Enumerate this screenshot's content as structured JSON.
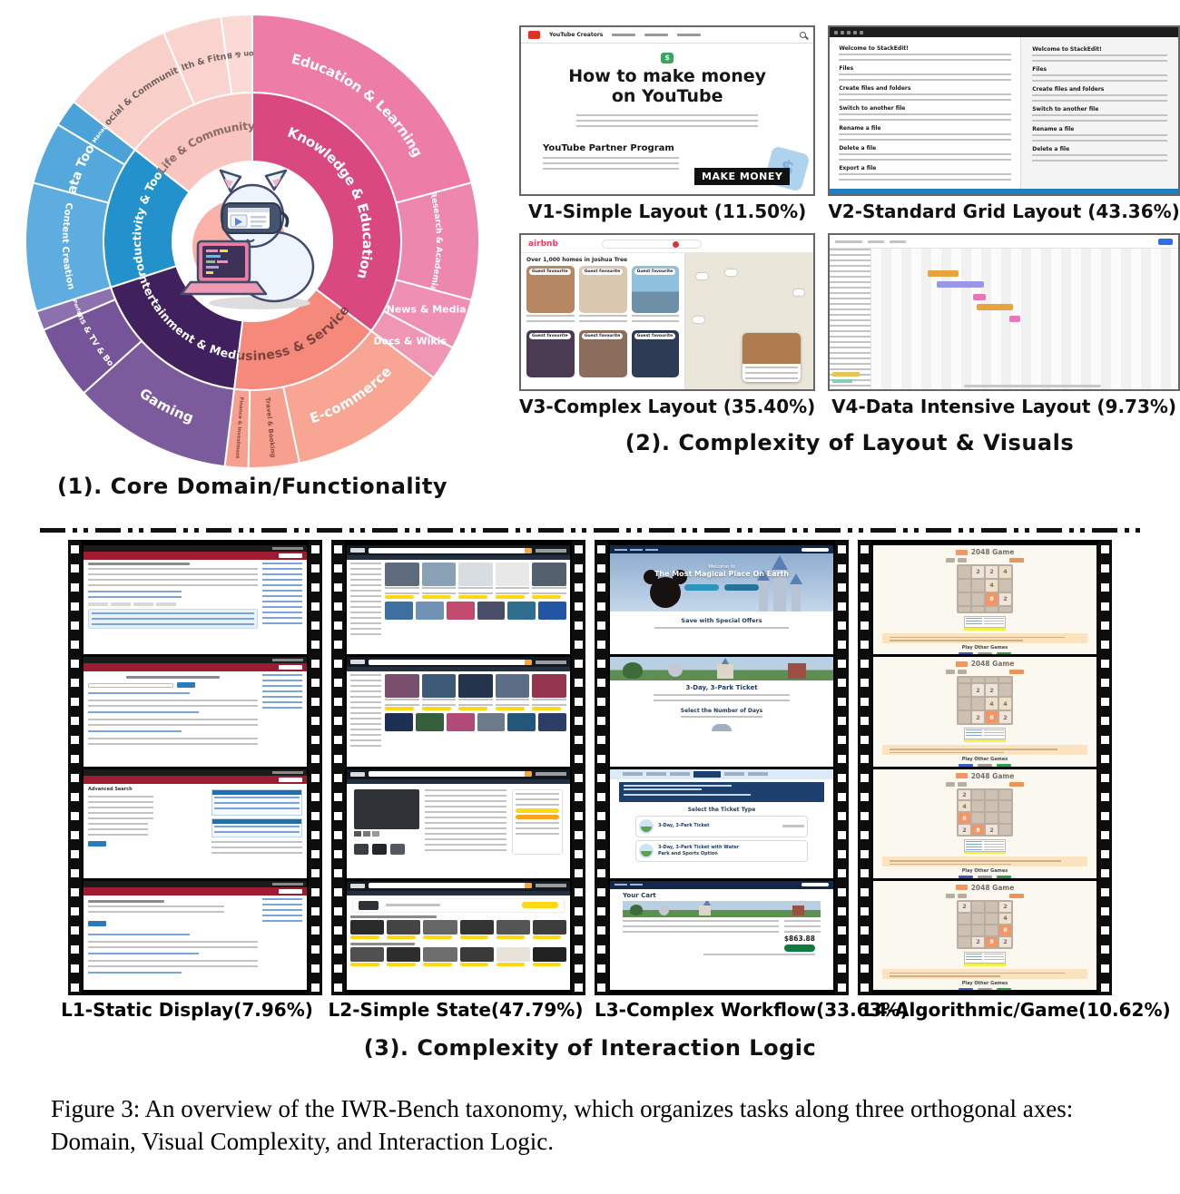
{
  "panel1": {
    "caption": "(1). Core Domain/Functionality"
  },
  "panel2": {
    "caption": "(2). Complexity of Layout & Visuals",
    "labels": {
      "v1": "V1-Simple Layout (11.50%)",
      "v2": "V2-Standard Grid Layout (43.36%)",
      "v3": "V3-Complex Layout (35.40%)",
      "v4": "V4-Data Intensive Layout (9.73%)"
    },
    "v1": {
      "brand": "YouTube Creators",
      "money_icon": "$",
      "title_line1": "How to make money",
      "title_line2": "on YouTube",
      "subheading": "YouTube Partner Program",
      "badge": "MAKE MONEY",
      "star_glyph": "$"
    },
    "v2": {
      "headings_left": [
        "Welcome to StackEdit!",
        "Files",
        "Create files and folders",
        "Switch to another file",
        "Rename a file",
        "Delete a file",
        "Export a file"
      ],
      "headings_right": [
        "Welcome to StackEdit!",
        "Files",
        "Create files and folders",
        "Switch to another file",
        "Rename a file",
        "Delete a file"
      ]
    },
    "v3": {
      "brand": "airbnb",
      "heading": "Over 1,000 homes in Joshua Tree",
      "card_badge": "Guest favourite"
    }
  },
  "panel3": {
    "caption": "(3). Complexity of Interaction Logic",
    "labels": {
      "l1": "L1-Static Display(7.96%)",
      "l2": "L2-Simple State(47.79%)",
      "l3": "L3-Complex Workflow(33.63%)",
      "l4": "L4-Algorithmic/Game(10.62%)"
    },
    "l1": {
      "f3_title": "Advanced Search"
    },
    "l3": {
      "hero_small": "Welcome to",
      "hero_title": "The Most Magical Place On Earth",
      "offers": "Save with Special Offers",
      "ticket_title": "3-Day, 3-Park Ticket",
      "select_days": "Select the Number of Days",
      "select_type": "Select the Ticket Type",
      "ticket_option1": "3-Day, 3-Park Ticket",
      "ticket_option2": "3-Day, 3-Park Ticket with Water Park and Sports Option",
      "cart_title": "Your Cart",
      "total": "$863.88"
    },
    "l4": {
      "title": "2048 Game",
      "footer_link": "Play Other Games",
      "boards": [
        [
          [
            null,
            2,
            2,
            4
          ],
          [
            null,
            null,
            4,
            null
          ],
          [
            null,
            null,
            8,
            2
          ],
          [
            null,
            null,
            null,
            null
          ]
        ],
        [
          [
            null,
            null,
            null,
            null
          ],
          [
            null,
            2,
            2,
            null
          ],
          [
            null,
            null,
            4,
            4
          ],
          [
            null,
            2,
            8,
            2
          ]
        ],
        [
          [
            2,
            null,
            null,
            null
          ],
          [
            4,
            null,
            null,
            null
          ],
          [
            8,
            null,
            null,
            null
          ],
          [
            2,
            8,
            2,
            null
          ]
        ],
        [
          [
            2,
            null,
            null,
            2
          ],
          [
            null,
            null,
            null,
            4
          ],
          [
            null,
            null,
            null,
            8
          ],
          [
            null,
            2,
            8,
            2
          ]
        ]
      ]
    }
  },
  "figure": {
    "caption": "Figure 3: An overview of the IWR-Bench taxonomy, which organizes tasks along three orthogonal axes: Domain, Visual Complexity, and Interaction Logic."
  },
  "chart_data": {
    "type": "sunburst",
    "title": "Core Domain/Functionality",
    "units": "degrees of 360 (angular share of each category)",
    "rings": {
      "inner_radius": [
        88,
        164
      ],
      "outer_radius": [
        164,
        250
      ]
    },
    "segments": [
      {
        "label": "Knowledge & Education",
        "ring": 1,
        "parent": null,
        "a0": 0,
        "a1": 127,
        "color": "#d9487e",
        "text": "#ffffff",
        "fs": 15,
        "mode": "arc"
      },
      {
        "label": "Business & Services",
        "ring": 1,
        "parent": null,
        "a0": 127,
        "a1": 187,
        "color": "#f5897b",
        "text": "#7c423c",
        "fs": 14,
        "mode": "arc"
      },
      {
        "label": "Entertainment & Media",
        "ring": 1,
        "parent": null,
        "a0": 187,
        "a1": 252,
        "color": "#40215e",
        "text": "#ffffff",
        "fs": 12.5,
        "mode": "arc"
      },
      {
        "label": "Productivity & Tools",
        "ring": 1,
        "parent": null,
        "a0": 252,
        "a1": 308,
        "color": "#2391cb",
        "text": "#ffffff",
        "fs": 12.5,
        "mode": "arc"
      },
      {
        "label": "Life & Community",
        "ring": 1,
        "parent": null,
        "a0": 308,
        "a1": 360,
        "color": "#f8c5c0",
        "text": "#8a6a64",
        "fs": 12,
        "mode": "arc"
      },
      {
        "label": "Education & Learning",
        "ring": 2,
        "parent": "Knowledge & Education",
        "a0": 0,
        "a1": 75,
        "color": "#ed7ca6",
        "text": "#ffffff",
        "fs": 15,
        "mode": "arc"
      },
      {
        "label": "Research & Academia",
        "ring": 2,
        "parent": "Knowledge & Education",
        "a0": 75,
        "a1": 105,
        "color": "#ee87ad",
        "text": "#ffffff",
        "fs": 9,
        "mode": "arc"
      },
      {
        "label": "News & Media",
        "ring": 2,
        "parent": "Knowledge & Education",
        "a0": 105,
        "a1": 118,
        "color": "#ef90b2",
        "text": "#ffffff",
        "fs": 11,
        "mode": "horizontal"
      },
      {
        "label": "Docs & Wikis",
        "ring": 2,
        "parent": "Knowledge & Education",
        "a0": 118,
        "a1": 127,
        "color": "#f096b5",
        "text": "#ffffff",
        "fs": 11,
        "mode": "horizontal"
      },
      {
        "label": "E-commerce",
        "ring": 2,
        "parent": "Business & Services",
        "a0": 127,
        "a1": 168,
        "color": "#f9a593",
        "text": "#ffffff",
        "fs": 15,
        "mode": "arc"
      },
      {
        "label": "Travel & Booking",
        "ring": 2,
        "parent": "Business & Services",
        "a0": 168,
        "a1": 181,
        "color": "#f8a08f",
        "text": "#8a4a40",
        "fs": 7,
        "mode": "radial"
      },
      {
        "label": "Finance & Investment",
        "ring": 2,
        "parent": "Business & Services",
        "a0": 181,
        "a1": 187,
        "color": "#f8a08f",
        "text": "#8a4a40",
        "fs": 5.5,
        "mode": "radial"
      },
      {
        "label": "Gaming",
        "ring": 2,
        "parent": "Entertainment & Media",
        "a0": 187,
        "a1": 228,
        "color": "#7c5b9d",
        "text": "#ffffff",
        "fs": 15,
        "mode": "arc"
      },
      {
        "label": "Films & TV & Books",
        "ring": 2,
        "parent": "Entertainment & Media",
        "a0": 228,
        "a1": 247,
        "color": "#75549a",
        "text": "#ffffff",
        "fs": 9,
        "mode": "arc"
      },
      {
        "label": "Music & Performances",
        "ring": 2,
        "parent": "Entertainment & Media",
        "a0": 247,
        "a1": 252,
        "color": "#8d71ae",
        "text": "#ffffff",
        "fs": 5.5,
        "mode": "arc"
      },
      {
        "label": "Content Creation",
        "ring": 2,
        "parent": "Productivity & Tools",
        "a0": 252,
        "a1": 285,
        "color": "#5fade0",
        "text": "#ffffff",
        "fs": 10,
        "mode": "arc"
      },
      {
        "label": "Data Tools",
        "ring": 2,
        "parent": "Productivity & Tools",
        "a0": 285,
        "a1": 301,
        "color": "#55a8dc",
        "text": "#ffffff",
        "fs": 14,
        "mode": "arc"
      },
      {
        "label": "Project Management",
        "ring": 2,
        "parent": "Productivity & Tools",
        "a0": 301,
        "a1": 308,
        "color": "#4aa2d9",
        "text": "#ffffff",
        "fs": 6,
        "mode": "arc"
      },
      {
        "label": "Social & Community",
        "ring": 2,
        "parent": "Life & Community",
        "a0": 308,
        "a1": 337,
        "color": "#f9cfc9",
        "text": "#6f625f",
        "fs": 10,
        "mode": "arc"
      },
      {
        "label": "Health & Fitness",
        "ring": 2,
        "parent": "Life & Community",
        "a0": 337,
        "a1": 352,
        "color": "#fad3ce",
        "text": "#6f625f",
        "fs": 9.5,
        "mode": "arc"
      },
      {
        "label": "Fashion & Beauty",
        "ring": 2,
        "parent": "Life & Community",
        "a0": 352,
        "a1": 360,
        "color": "#fbd9d4",
        "text": "#6f625f",
        "fs": 8,
        "mode": "arc",
        "flip": true
      }
    ]
  }
}
